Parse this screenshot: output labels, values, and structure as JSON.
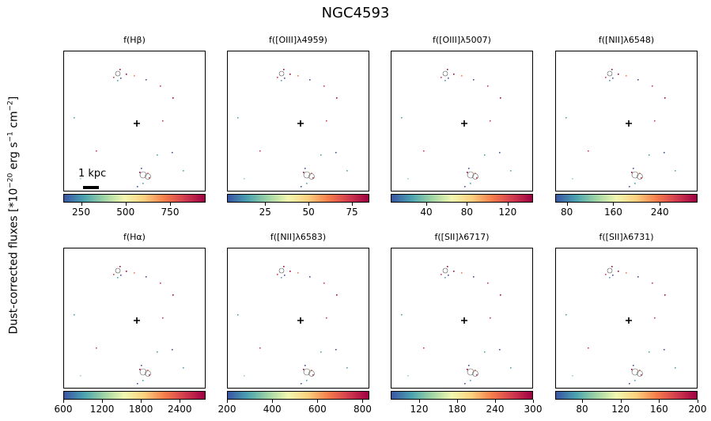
{
  "title": "NGC4593",
  "ylabel": {
    "prefix": "Dust-corrected fluxes [*10",
    "exp1": "−20",
    "mid1": " erg s",
    "exp2": "−1",
    "mid2": " cm",
    "exp3": "−2",
    "suffix": "]"
  },
  "scalebar_label": "1 kpc",
  "colors": {
    "colormap": "Spectral_r",
    "axis": "#000000"
  },
  "chart_data": [
    {
      "type": "heatmap",
      "title": "f(Hβ)",
      "colorbar": {
        "ticks": [
          250,
          500,
          750
        ],
        "range": [
          150,
          950
        ]
      }
    },
    {
      "type": "heatmap",
      "title": "f([OIII]λ4959)",
      "colorbar": {
        "ticks": [
          25,
          50,
          75
        ],
        "range": [
          3,
          85
        ]
      }
    },
    {
      "type": "heatmap",
      "title": "f([OIII]λ5007)",
      "colorbar": {
        "ticks": [
          40,
          80,
          120
        ],
        "range": [
          5,
          145
        ]
      }
    },
    {
      "type": "heatmap",
      "title": "f([NII]λ6548)",
      "colorbar": {
        "ticks": [
          80,
          160,
          240
        ],
        "range": [
          60,
          305
        ]
      }
    },
    {
      "type": "heatmap",
      "title": "f(Hα)",
      "colorbar": {
        "ticks": [
          600,
          1200,
          1800,
          2400
        ],
        "range": [
          600,
          2800
        ]
      }
    },
    {
      "type": "heatmap",
      "title": "f([NII]λ6583)",
      "colorbar": {
        "ticks": [
          200,
          400,
          600,
          800
        ],
        "range": [
          200,
          830
        ]
      }
    },
    {
      "type": "heatmap",
      "title": "f([SII]λ6717)",
      "colorbar": {
        "ticks": [
          120,
          180,
          240,
          300
        ],
        "range": [
          75,
          300
        ]
      }
    },
    {
      "type": "heatmap",
      "title": "f([SII]λ6731)",
      "colorbar": {
        "ticks": [
          80,
          120,
          160,
          200
        ],
        "range": [
          52,
          200
        ]
      }
    }
  ]
}
